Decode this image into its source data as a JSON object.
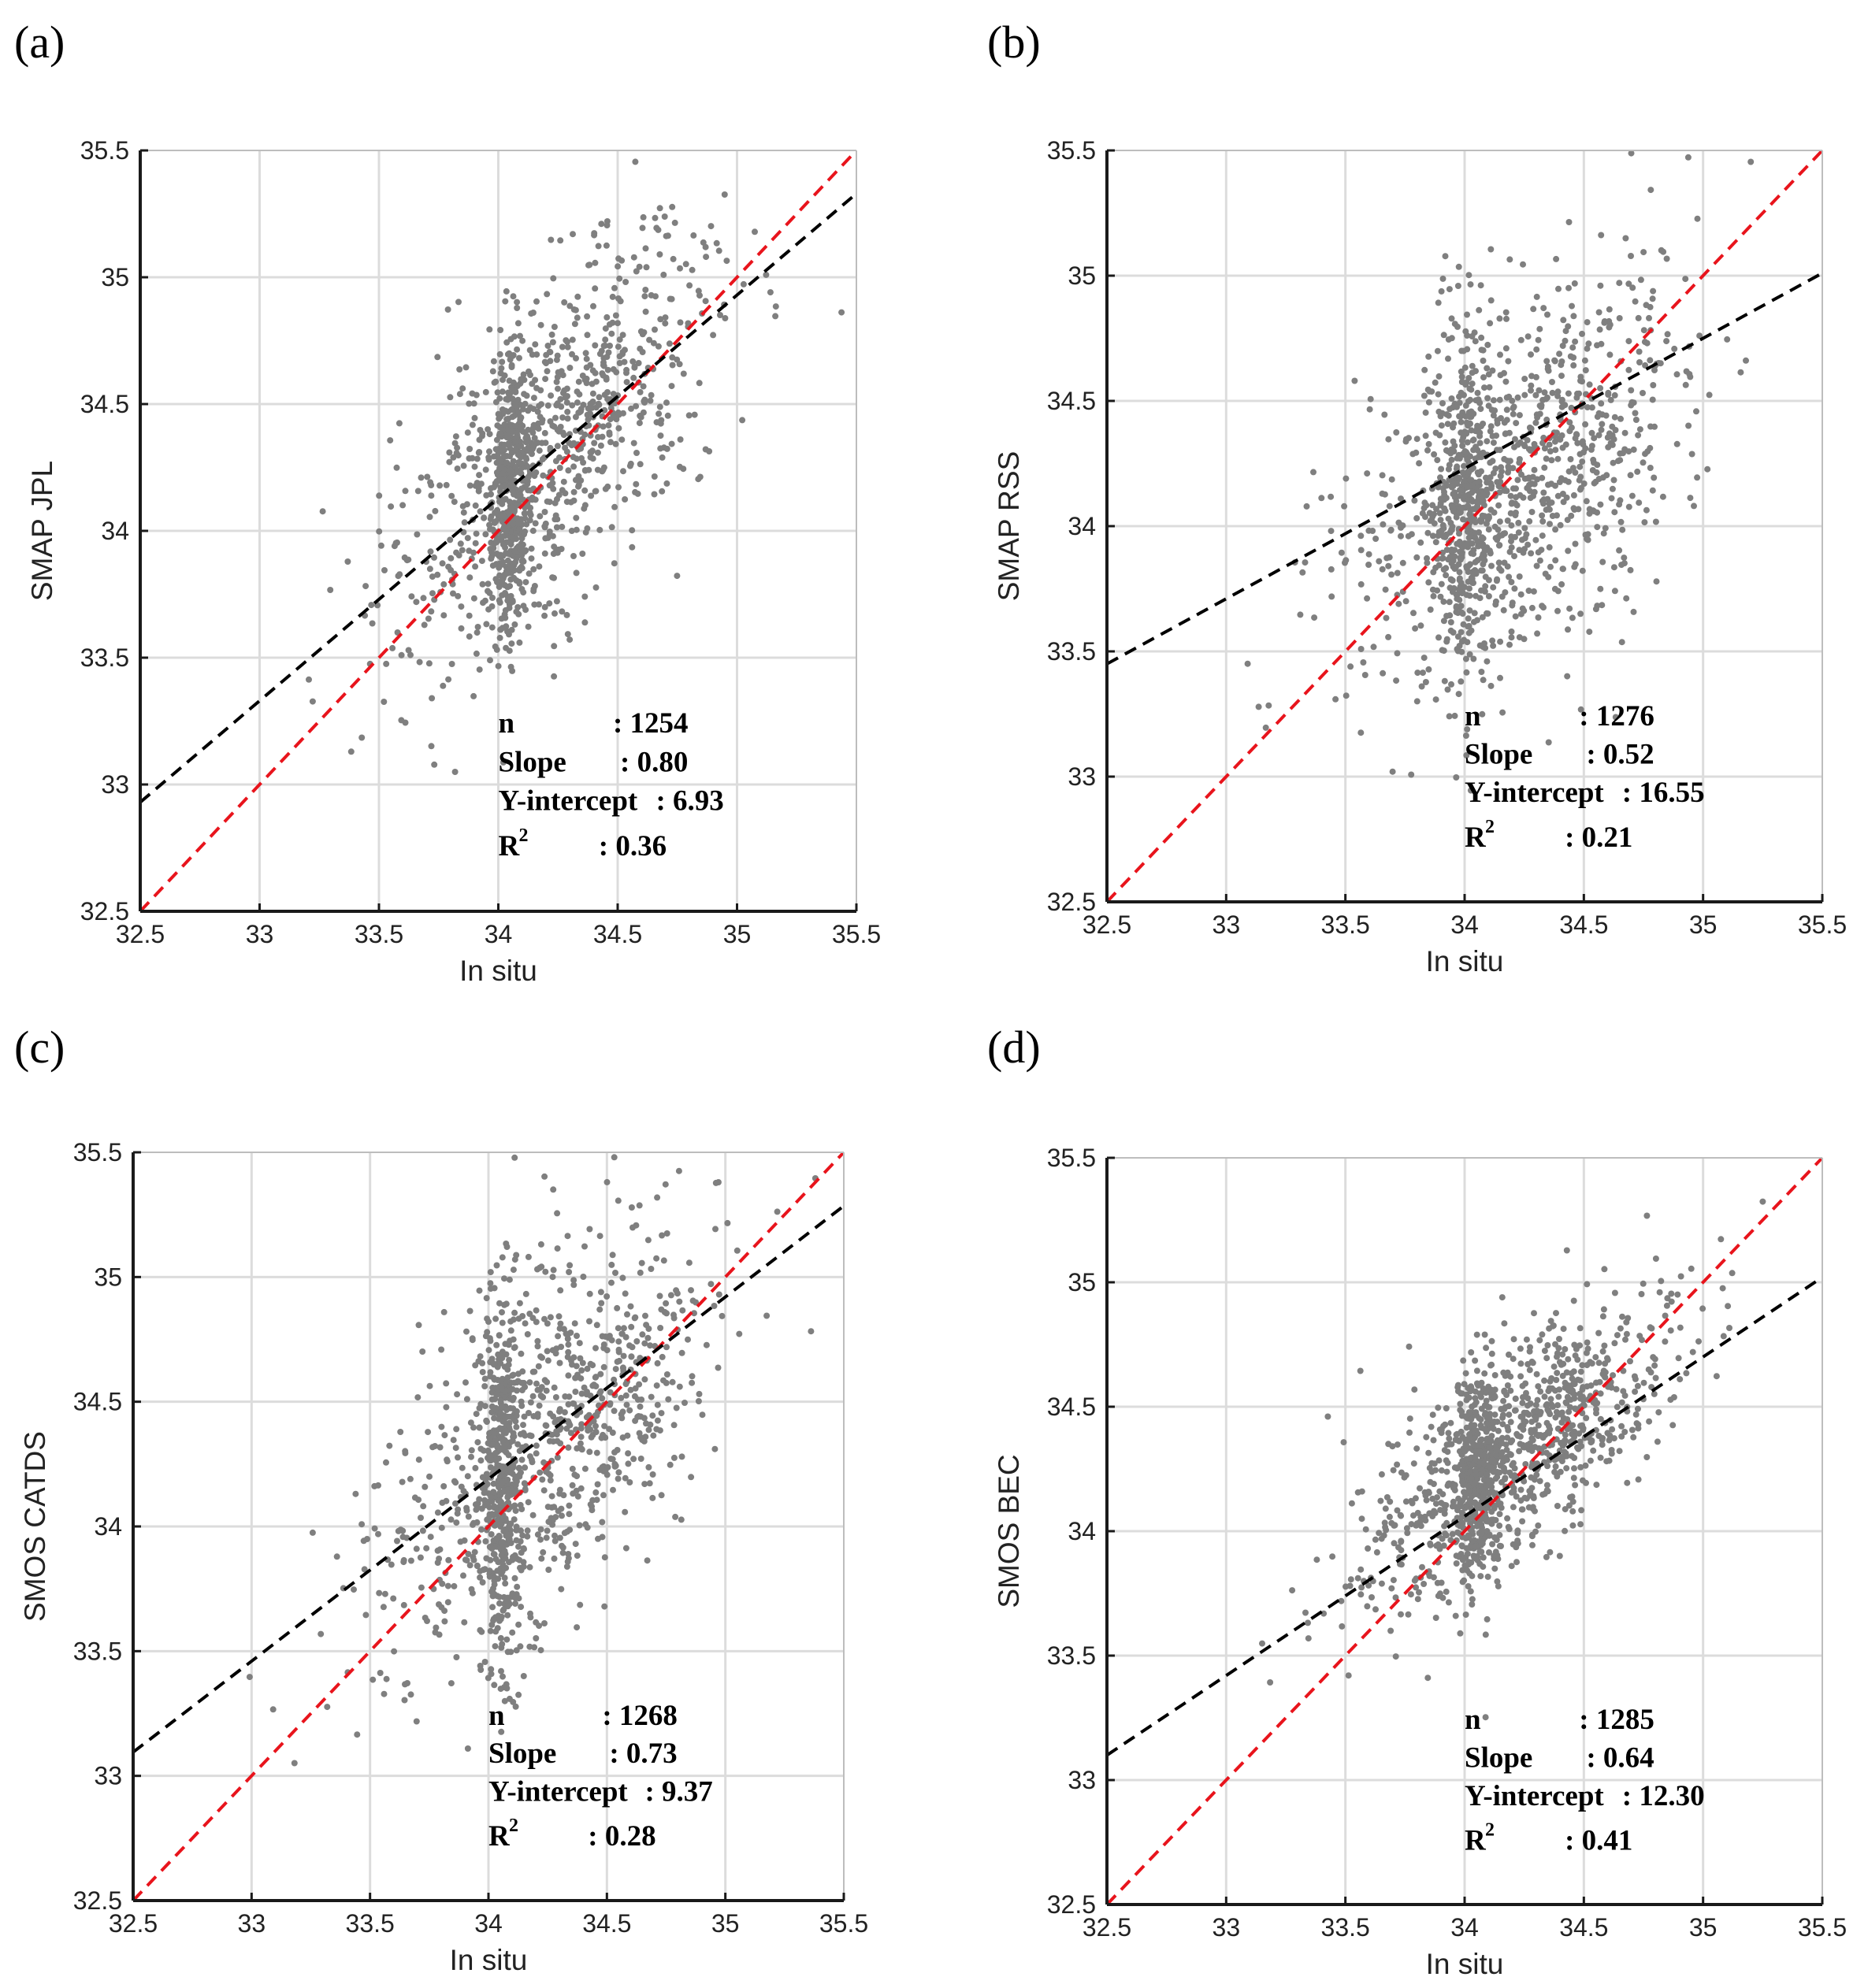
{
  "chart_data": [
    {
      "panel_label": "(a)",
      "type": "scatter",
      "xlabel": "In situ",
      "ylabel": "SMAP JPL",
      "xlim": [
        32.5,
        35.5
      ],
      "ylim": [
        32.5,
        35.5
      ],
      "xticks": [
        "32.5",
        "33",
        "33.5",
        "34",
        "34.5",
        "35",
        "35.5"
      ],
      "yticks": [
        "32.5",
        "33",
        "33.5",
        "34",
        "34.5",
        "35",
        "35.5"
      ],
      "grid": true,
      "point_color": "#7f7f7f",
      "scatter_model": {
        "cx": 34.25,
        "cy": 34.35,
        "sx": 0.33,
        "slope": 0.8,
        "noise": 0.32,
        "sharp_center": 34.05,
        "sharp_spread": 0.04
      },
      "fit_line": {
        "slope": 0.8,
        "intercept": 6.93,
        "color": "#000000",
        "style": "dashed"
      },
      "reference_line": {
        "slope": 1,
        "intercept": 0,
        "color": "#e8141c",
        "style": "dashed"
      },
      "stats": {
        "n_label": "n",
        "n_value": ": 1254",
        "slope_label": "Slope",
        "slope_value": ": 0.80",
        "intercept_label": "Y-intercept",
        "intercept_value": ": 6.93",
        "r2_label": "R",
        "r2_sup": "2",
        "r2_value": ": 0.36"
      }
    },
    {
      "panel_label": "(b)",
      "type": "scatter",
      "xlabel": "In situ",
      "ylabel": "SMAP RSS",
      "xlim": [
        32.5,
        35.5
      ],
      "ylim": [
        32.5,
        35.5
      ],
      "xticks": [
        "32.5",
        "33",
        "33.5",
        "34",
        "34.5",
        "35",
        "35.5"
      ],
      "yticks": [
        "32.5",
        "33",
        "33.5",
        "34",
        "34.5",
        "35",
        "35.5"
      ],
      "grid": true,
      "point_color": "#7f7f7f",
      "scatter_model": {
        "cx": 34.25,
        "cy": 34.2,
        "sx": 0.35,
        "slope": 0.52,
        "noise": 0.36,
        "sharp_center": 34.0,
        "sharp_spread": 0.06
      },
      "fit_line": {
        "slope": 0.52,
        "intercept": 16.55,
        "color": "#000000",
        "style": "dashed"
      },
      "reference_line": {
        "slope": 1,
        "intercept": 0,
        "color": "#e8141c",
        "style": "dashed"
      },
      "stats": {
        "n_label": "n",
        "n_value": ": 1276",
        "slope_label": "Slope",
        "slope_value": ": 0.52",
        "intercept_label": "Y-intercept",
        "intercept_value": ": 16.55",
        "r2_label": "R",
        "r2_sup": "2",
        "r2_value": ": 0.21"
      }
    },
    {
      "panel_label": "(c)",
      "type": "scatter",
      "xlabel": "In situ",
      "ylabel": "SMOS CATDS",
      "xlim": [
        32.5,
        35.5
      ],
      "ylim": [
        32.5,
        35.5
      ],
      "xticks": [
        "32.5",
        "33",
        "33.5",
        "34",
        "34.5",
        "35",
        "35.5"
      ],
      "yticks": [
        "32.5",
        "33",
        "33.5",
        "34",
        "34.5",
        "35",
        "35.5"
      ],
      "grid": true,
      "point_color": "#7f7f7f",
      "scatter_model": {
        "cx": 34.25,
        "cy": 34.35,
        "sx": 0.35,
        "slope": 0.73,
        "noise": 0.36,
        "sharp_center": 34.05,
        "sharp_spread": 0.04
      },
      "fit_line": {
        "slope": 0.73,
        "intercept": 9.37,
        "color": "#000000",
        "style": "dashed"
      },
      "reference_line": {
        "slope": 1,
        "intercept": 0,
        "color": "#e8141c",
        "style": "dashed"
      },
      "stats": {
        "n_label": "n",
        "n_value": ": 1268",
        "slope_label": "Slope",
        "slope_value": ": 0.73",
        "intercept_label": "Y-intercept",
        "intercept_value": ": 9.37",
        "r2_label": "R",
        "r2_sup": "2",
        "r2_value": ": 0.28"
      }
    },
    {
      "panel_label": "(d)",
      "type": "scatter",
      "xlabel": "In situ",
      "ylabel": "SMOS BEC",
      "xlim": [
        32.5,
        35.5
      ],
      "ylim": [
        32.5,
        35.5
      ],
      "xticks": [
        "32.5",
        "33",
        "33.5",
        "34",
        "34.5",
        "35",
        "35.5"
      ],
      "yticks": [
        "32.5",
        "33",
        "33.5",
        "34",
        "34.5",
        "35",
        "35.5"
      ],
      "grid": true,
      "point_color": "#7f7f7f",
      "scatter_model": {
        "cx": 34.2,
        "cy": 34.3,
        "sx": 0.33,
        "slope": 0.64,
        "noise": 0.22,
        "sharp_center": 34.05,
        "sharp_spread": 0.05
      },
      "fit_line": {
        "slope": 0.64,
        "intercept": 12.3,
        "color": "#000000",
        "style": "dashed"
      },
      "reference_line": {
        "slope": 1,
        "intercept": 0,
        "color": "#e8141c",
        "style": "dashed"
      },
      "stats": {
        "n_label": "n",
        "n_value": ": 1285",
        "slope_label": "Slope",
        "slope_value": ": 0.64",
        "intercept_label": "Y-intercept",
        "intercept_value": ": 12.30",
        "r2_label": "R",
        "r2_sup": "2",
        "r2_value": ": 0.41"
      }
    }
  ]
}
